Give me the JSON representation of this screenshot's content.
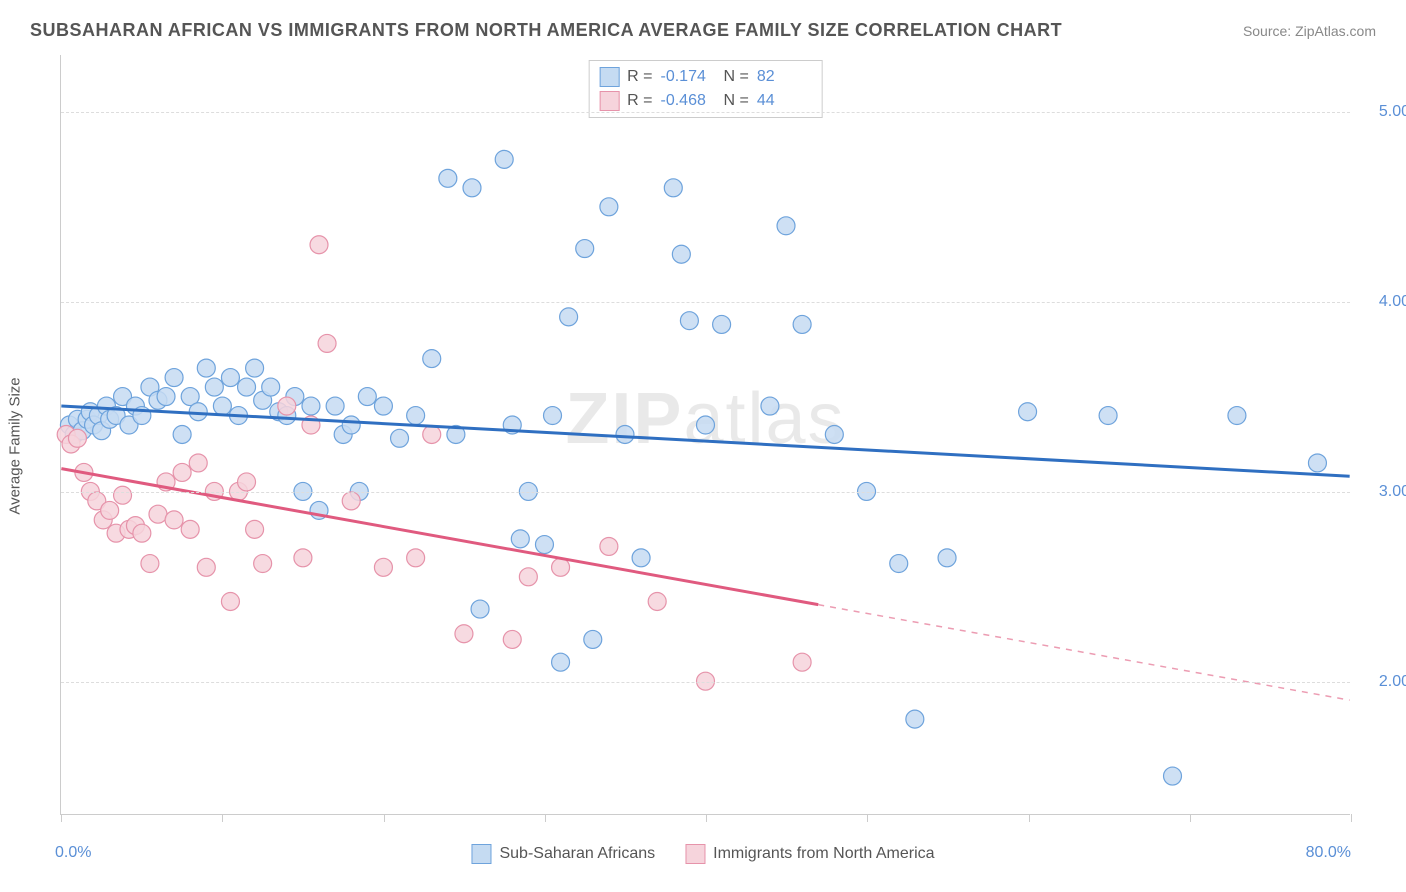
{
  "title": "SUBSAHARAN AFRICAN VS IMMIGRANTS FROM NORTH AMERICA AVERAGE FAMILY SIZE CORRELATION CHART",
  "source_label": "Source: ",
  "source_name": "ZipAtlas.com",
  "y_axis_label": "Average Family Size",
  "x_min_label": "0.0%",
  "x_max_label": "80.0%",
  "watermark_a": "ZIP",
  "watermark_b": "atlas",
  "chart": {
    "type": "scatter",
    "xlim": [
      0,
      80
    ],
    "ylim": [
      1.3,
      5.3
    ],
    "y_ticks": [
      2.0,
      3.0,
      4.0,
      5.0
    ],
    "y_tick_labels": [
      "2.00",
      "3.00",
      "4.00",
      "5.00"
    ],
    "x_tick_positions": [
      0,
      10,
      20,
      30,
      40,
      50,
      60,
      70,
      80
    ],
    "grid_color": "#dddddd",
    "axis_color": "#cccccc",
    "tick_label_color": "#5a8fd6",
    "point_radius": 9,
    "point_stroke_width": 1.2,
    "trend_line_width": 3,
    "series": [
      {
        "id": "subsaharan",
        "label": "Sub-Saharan Africans",
        "fill": "#c5dbf2",
        "stroke": "#6ea3dc",
        "line_color": "#2f6fc1",
        "R_label": "R =",
        "R_value": "-0.174",
        "N_label": "N =",
        "N_value": "82",
        "trend": {
          "x1": 0,
          "y1": 3.45,
          "x2": 80,
          "y2": 3.08,
          "dashed_from": null
        },
        "points": [
          [
            0.5,
            3.35
          ],
          [
            0.8,
            3.3
          ],
          [
            1.0,
            3.38
          ],
          [
            1.3,
            3.32
          ],
          [
            1.6,
            3.38
          ],
          [
            1.8,
            3.42
          ],
          [
            2.0,
            3.35
          ],
          [
            2.3,
            3.4
          ],
          [
            2.5,
            3.32
          ],
          [
            2.8,
            3.45
          ],
          [
            3.0,
            3.38
          ],
          [
            3.4,
            3.4
          ],
          [
            3.8,
            3.5
          ],
          [
            4.2,
            3.35
          ],
          [
            4.6,
            3.45
          ],
          [
            5.0,
            3.4
          ],
          [
            5.5,
            3.55
          ],
          [
            6.0,
            3.48
          ],
          [
            6.5,
            3.5
          ],
          [
            7.0,
            3.6
          ],
          [
            7.5,
            3.3
          ],
          [
            8.0,
            3.5
          ],
          [
            8.5,
            3.42
          ],
          [
            9.0,
            3.65
          ],
          [
            9.5,
            3.55
          ],
          [
            10.0,
            3.45
          ],
          [
            10.5,
            3.6
          ],
          [
            11.0,
            3.4
          ],
          [
            11.5,
            3.55
          ],
          [
            12.0,
            3.65
          ],
          [
            12.5,
            3.48
          ],
          [
            13.0,
            3.55
          ],
          [
            13.5,
            3.42
          ],
          [
            14.0,
            3.4
          ],
          [
            14.5,
            3.5
          ],
          [
            15.0,
            3.0
          ],
          [
            15.5,
            3.45
          ],
          [
            16.0,
            2.9
          ],
          [
            17.0,
            3.45
          ],
          [
            17.5,
            3.3
          ],
          [
            18.0,
            3.35
          ],
          [
            18.5,
            3.0
          ],
          [
            19.0,
            3.5
          ],
          [
            20.0,
            3.45
          ],
          [
            21.0,
            3.28
          ],
          [
            22.0,
            3.4
          ],
          [
            23.0,
            3.7
          ],
          [
            24.0,
            4.65
          ],
          [
            24.5,
            3.3
          ],
          [
            25.5,
            4.6
          ],
          [
            26.0,
            2.38
          ],
          [
            27.5,
            4.75
          ],
          [
            28.0,
            3.35
          ],
          [
            28.5,
            2.75
          ],
          [
            29.0,
            3.0
          ],
          [
            30.0,
            2.72
          ],
          [
            30.5,
            3.4
          ],
          [
            31.0,
            2.1
          ],
          [
            31.5,
            3.92
          ],
          [
            32.5,
            4.28
          ],
          [
            33.0,
            2.22
          ],
          [
            34.0,
            4.5
          ],
          [
            35.0,
            3.3
          ],
          [
            36.0,
            2.65
          ],
          [
            38.0,
            4.6
          ],
          [
            38.5,
            4.25
          ],
          [
            39.0,
            3.9
          ],
          [
            40.0,
            3.35
          ],
          [
            41.0,
            3.88
          ],
          [
            44.0,
            3.45
          ],
          [
            45.0,
            4.4
          ],
          [
            46.0,
            3.88
          ],
          [
            48.0,
            3.3
          ],
          [
            50.0,
            3.0
          ],
          [
            52.0,
            2.62
          ],
          [
            53.0,
            1.8
          ],
          [
            55.0,
            2.65
          ],
          [
            60.0,
            3.42
          ],
          [
            65.0,
            3.4
          ],
          [
            69.0,
            1.5
          ],
          [
            73.0,
            3.4
          ],
          [
            78.0,
            3.15
          ]
        ]
      },
      {
        "id": "north_america",
        "label": "Immigrants from North America",
        "fill": "#f6d4dc",
        "stroke": "#e693aa",
        "line_color": "#e05a7f",
        "R_label": "R =",
        "R_value": "-0.468",
        "N_label": "N =",
        "N_value": "44",
        "trend": {
          "x1": 0,
          "y1": 3.12,
          "x2": 80,
          "y2": 1.9,
          "dashed_from": 47
        },
        "points": [
          [
            0.3,
            3.3
          ],
          [
            0.6,
            3.25
          ],
          [
            1.0,
            3.28
          ],
          [
            1.4,
            3.1
          ],
          [
            1.8,
            3.0
          ],
          [
            2.2,
            2.95
          ],
          [
            2.6,
            2.85
          ],
          [
            3.0,
            2.9
          ],
          [
            3.4,
            2.78
          ],
          [
            3.8,
            2.98
          ],
          [
            4.2,
            2.8
          ],
          [
            4.6,
            2.82
          ],
          [
            5.0,
            2.78
          ],
          [
            5.5,
            2.62
          ],
          [
            6.0,
            2.88
          ],
          [
            6.5,
            3.05
          ],
          [
            7.0,
            2.85
          ],
          [
            7.5,
            3.1
          ],
          [
            8.0,
            2.8
          ],
          [
            8.5,
            3.15
          ],
          [
            9.0,
            2.6
          ],
          [
            9.5,
            3.0
          ],
          [
            10.5,
            2.42
          ],
          [
            11.0,
            3.0
          ],
          [
            11.5,
            3.05
          ],
          [
            12.0,
            2.8
          ],
          [
            12.5,
            2.62
          ],
          [
            14.0,
            3.45
          ],
          [
            15.0,
            2.65
          ],
          [
            15.5,
            3.35
          ],
          [
            16.0,
            4.3
          ],
          [
            16.5,
            3.78
          ],
          [
            18.0,
            2.95
          ],
          [
            20.0,
            2.6
          ],
          [
            22.0,
            2.65
          ],
          [
            23.0,
            3.3
          ],
          [
            25.0,
            2.25
          ],
          [
            28.0,
            2.22
          ],
          [
            29.0,
            2.55
          ],
          [
            31.0,
            2.6
          ],
          [
            34.0,
            2.71
          ],
          [
            37.0,
            2.42
          ],
          [
            40.0,
            2.0
          ],
          [
            46.0,
            2.1
          ]
        ]
      }
    ]
  }
}
